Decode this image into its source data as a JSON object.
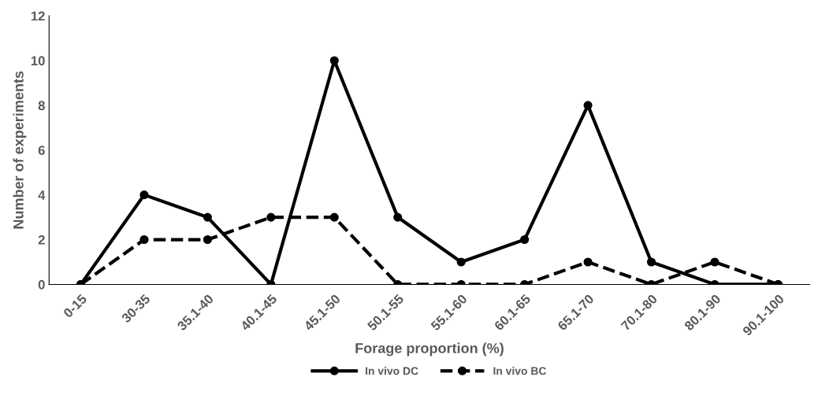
{
  "chart_data": {
    "type": "line",
    "xlabel": "Forage proportion (%)",
    "ylabel": "Number of experiments",
    "categories": [
      "0-15",
      "30-35",
      "35.1-40",
      "40.1-45",
      "45.1-50",
      "50.1-55",
      "55.1-60",
      "60.1-65",
      "65.1-70",
      "70.1-80",
      "80.1-90",
      "90.1-100"
    ],
    "series": [
      {
        "name": "In vivo DC",
        "color": "#000000",
        "line_style": "solid",
        "values": [
          0,
          4,
          3,
          0,
          10,
          3,
          1,
          2,
          8,
          1,
          0,
          0
        ]
      },
      {
        "name": "In vivo BC",
        "color": "#000000",
        "line_style": "dashed",
        "values": [
          0,
          2,
          2,
          3,
          3,
          0,
          0,
          0,
          1,
          0,
          1,
          0
        ]
      }
    ],
    "ylim": [
      0,
      12
    ],
    "yticks": [
      0,
      2,
      4,
      6,
      8,
      10,
      12
    ],
    "grid": false,
    "legend": "bottom",
    "marker": "circle"
  }
}
